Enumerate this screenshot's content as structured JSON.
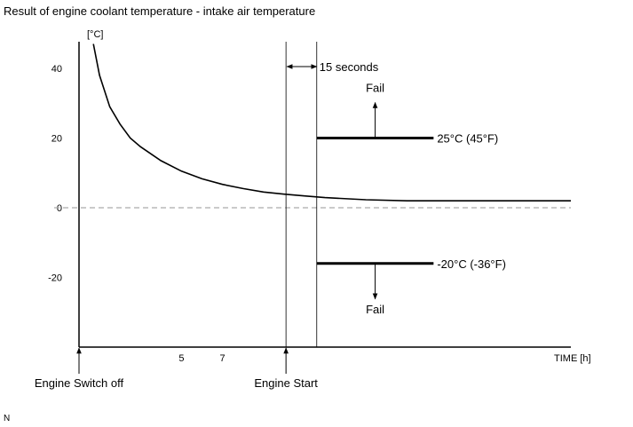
{
  "chart_data": {
    "type": "line",
    "title": "Result of engine coolant temperature - intake air temperature",
    "ylabel": "[°C]",
    "xlabel": "TIME [h]",
    "yticks": [
      40,
      20,
      0,
      -20
    ],
    "xticks": [
      5,
      7
    ],
    "ylim": [
      -40,
      47
    ],
    "xlim": [
      0,
      24
    ],
    "grid": false,
    "zero_line": "dashed",
    "series": [
      {
        "values_x": [
          0.7,
          1.0,
          1.5,
          2.0,
          2.5,
          3.0,
          4.0,
          5.0,
          6.0,
          7.0,
          8.0,
          9.0,
          10.0,
          11.0,
          12.0,
          14.0,
          16.0,
          18.0,
          20.0,
          22.0,
          24.0
        ],
        "values_y": [
          48,
          38,
          29,
          24,
          20,
          17.5,
          13.5,
          10.5,
          8.3,
          6.7,
          5.5,
          4.5,
          3.9,
          3.4,
          2.9,
          2.3,
          2.0,
          2.0,
          2.0,
          2.0,
          2.0
        ]
      }
    ],
    "thresholds": [
      {
        "value": 20,
        "x_start": 11.6,
        "x_end": 17.3,
        "label": "25°C (45°F)",
        "result": "Fail",
        "arrow": "up"
      },
      {
        "value": -16,
        "x_start": 11.6,
        "x_end": 17.3,
        "label": "-20°C (-36°F)",
        "result": "Fail",
        "arrow": "down"
      }
    ],
    "events": [
      {
        "x": 0,
        "label": "Engine Switch off"
      },
      {
        "x": 10.1,
        "label": "Engine Start"
      }
    ],
    "interval": {
      "x_start": 10.1,
      "x_end": 11.6,
      "label": "15 seconds"
    }
  },
  "footer_mark": "N"
}
